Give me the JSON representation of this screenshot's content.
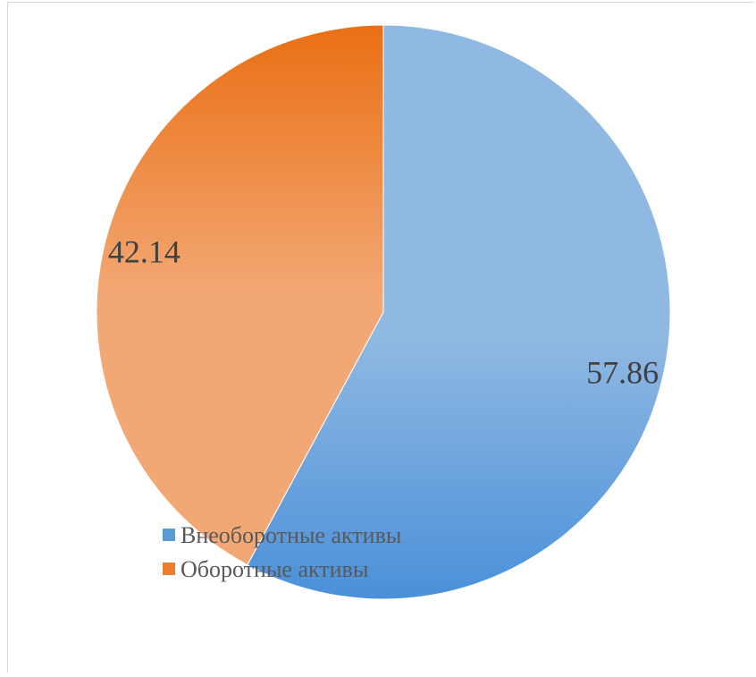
{
  "chart_data": {
    "type": "pie",
    "title": "",
    "slices": [
      {
        "label": "Внеоборотные активы",
        "value": 57.86,
        "color": "#5b9bd5",
        "color_light": "#8fb8e2",
        "color_dark": "#4a90d9"
      },
      {
        "label": "Оборотные активы",
        "value": 42.14,
        "color": "#ed7d31",
        "color_light": "#f2a874",
        "color_dark": "#ea6f14"
      }
    ],
    "start_angle_deg": 0,
    "direction": "clockwise",
    "data_labels": true,
    "legend_position": "bottom-left-overlay"
  }
}
